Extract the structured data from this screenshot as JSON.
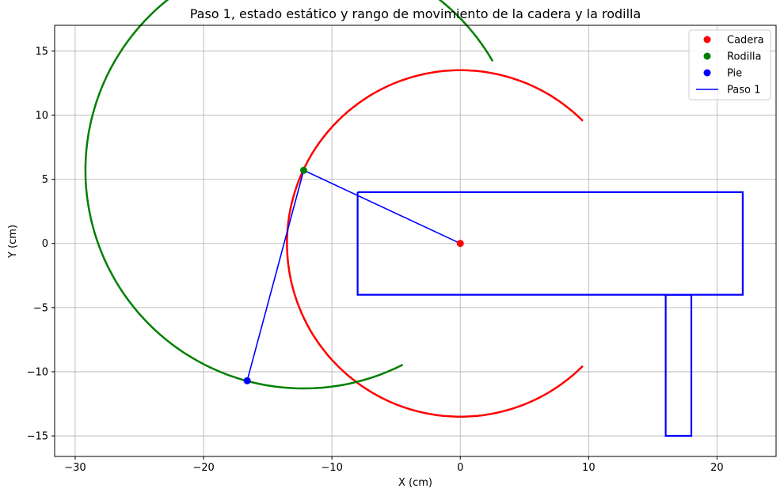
{
  "chart_data": {
    "type": "line",
    "title": "Paso 1, estado estático y rango de movimiento de la cadera y la rodilla",
    "xlabel": "X (cm)",
    "ylabel": "Y (cm)",
    "xlim": [
      -31.6,
      24.6
    ],
    "ylim": [
      -16.6,
      17.0
    ],
    "xticks": [
      -30,
      -20,
      -10,
      0,
      10,
      20
    ],
    "yticks": [
      -15,
      -10,
      -5,
      0,
      5,
      10,
      15
    ],
    "xtick_labels": [
      "−30",
      "−20",
      "−10",
      "0",
      "10",
      "20"
    ],
    "ytick_labels": [
      "−15",
      "−10",
      "−5",
      "0",
      "5",
      "10",
      "15"
    ],
    "grid": true,
    "legend_position": "top-right",
    "points": [
      {
        "name": "Cadera",
        "x": 0,
        "y": 0,
        "color": "#ff0000"
      },
      {
        "name": "Rodilla",
        "x": -12.2,
        "y": 5.7,
        "color": "#008000"
      },
      {
        "name": "Pie",
        "x": -16.6,
        "y": -10.7,
        "color": "#0000ff"
      }
    ],
    "arcs": [
      {
        "color": "#ff0000",
        "cx": 0,
        "cy": 0,
        "r": 13.5,
        "start_deg": 45,
        "end_deg": 315
      },
      {
        "color": "#008000",
        "cx": -12.2,
        "cy": 5.7,
        "r": 17.0,
        "start_deg": 30,
        "end_deg": 297
      }
    ],
    "step_line": {
      "name": "Paso 1",
      "color": "#0000ff",
      "x": [
        0,
        -12.2,
        -16.6
      ],
      "y": [
        0,
        5.7,
        -10.7
      ]
    },
    "body_outline": {
      "color": "#0000ff",
      "x": [
        -8,
        22,
        22,
        -8,
        -8
      ],
      "y": [
        4,
        4,
        -4,
        -4,
        4
      ]
    },
    "leg_outline": {
      "color": "#0000ff",
      "x": [
        16,
        18,
        18,
        16,
        16
      ],
      "y": [
        -4,
        -4,
        -15,
        -15,
        -4
      ]
    },
    "legend": [
      {
        "label": "Cadera",
        "kind": "marker",
        "color": "#ff0000"
      },
      {
        "label": "Rodilla",
        "kind": "marker",
        "color": "#008000"
      },
      {
        "label": "Pie",
        "kind": "marker",
        "color": "#0000ff"
      },
      {
        "label": "Paso 1",
        "kind": "line",
        "color": "#0000ff"
      }
    ]
  }
}
